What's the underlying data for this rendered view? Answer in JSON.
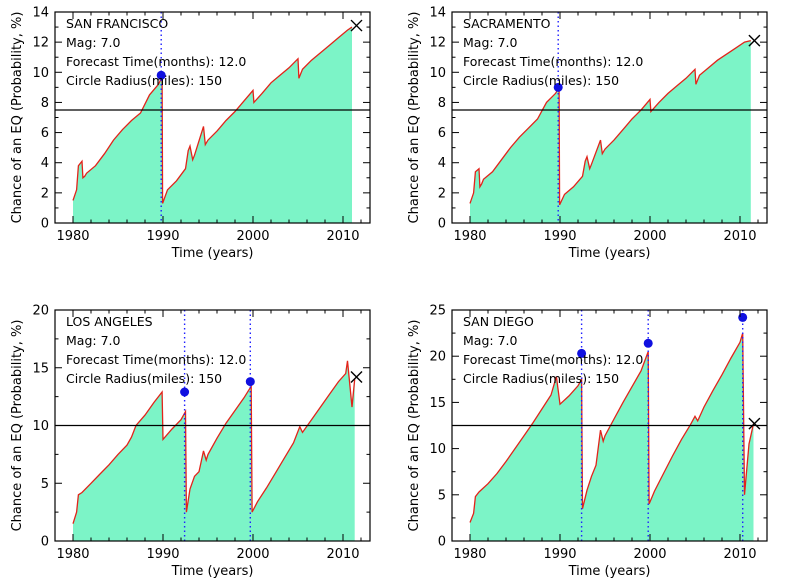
{
  "colors": {
    "fill": "#7cf4c7",
    "series": "#e2231a",
    "marker": "#1010e0",
    "event_line": "#2020ff",
    "threshold": "#000000",
    "axis": "#000000"
  },
  "chart_data": [
    {
      "type": "area",
      "location_label": "SAN FRANCISCO",
      "info": [
        "Mag: 7.0",
        "Forecast Time(months): 12.0",
        "Circle Radius(miles): 150"
      ],
      "xlabel": "Time (years)",
      "ylabel": "Chance of an EQ (Probability, %)",
      "xlim": [
        1978,
        2013
      ],
      "ylim": [
        0,
        14
      ],
      "xticks": [
        1980,
        1990,
        2000,
        2010
      ],
      "yticks": [
        0,
        2,
        4,
        6,
        8,
        10,
        12,
        14
      ],
      "threshold": 7.5,
      "series": [
        {
          "x": [
            1980.0,
            1980.4,
            1980.6,
            1981.0,
            1981.1,
            1981.3,
            1981.5,
            1982.5,
            1983.5,
            1984.5,
            1985.5,
            1986.5,
            1987.5,
            1988.5,
            1989.5,
            1989.9,
            1989.95,
            1990.5,
            1991.5,
            1992.5,
            1992.8,
            1993.0,
            1993.3,
            1993.5,
            1994.5,
            1994.7,
            1995.0,
            1996.0,
            1997.0,
            1998.0,
            1999.0,
            2000.0,
            2000.1,
            2001.0,
            2002.0,
            2003.0,
            2004.0,
            2005.0,
            2005.1,
            2005.3,
            2005.5,
            2006.5,
            2007.5,
            2008.5,
            2009.5,
            2010.5,
            2011.0
          ],
          "y": [
            1.5,
            2.2,
            3.8,
            4.1,
            3.0,
            3.1,
            3.3,
            3.8,
            4.6,
            5.5,
            6.2,
            6.8,
            7.3,
            8.5,
            9.2,
            9.7,
            1.3,
            2.2,
            2.8,
            3.6,
            4.8,
            5.1,
            4.2,
            4.5,
            6.4,
            5.2,
            5.5,
            6.1,
            6.8,
            7.4,
            8.1,
            8.8,
            8.0,
            8.6,
            9.3,
            9.8,
            10.3,
            10.9,
            9.6,
            9.9,
            10.2,
            10.8,
            11.3,
            11.8,
            12.3,
            12.8,
            13.0
          ]
        }
      ],
      "events": [
        {
          "x": 1989.8,
          "y": 9.8
        }
      ],
      "current": {
        "x": 2011.5,
        "y": 13.1
      }
    },
    {
      "type": "area",
      "location_label": "SACRAMENTO",
      "info": [
        "Mag: 7.0",
        "Forecast Time(months): 12.0",
        "Circle Radius(miles): 150"
      ],
      "xlabel": "Time (years)",
      "ylabel": "Chance of an EQ (Probability, %)",
      "xlim": [
        1978,
        2013
      ],
      "ylim": [
        0,
        14
      ],
      "xticks": [
        1980,
        1990,
        2000,
        2010
      ],
      "yticks": [
        0,
        2,
        4,
        6,
        8,
        10,
        12,
        14
      ],
      "threshold": 7.5,
      "series": [
        {
          "x": [
            1980.0,
            1980.4,
            1980.6,
            1981.0,
            1981.1,
            1981.3,
            1981.5,
            1982.5,
            1983.5,
            1984.5,
            1985.5,
            1986.5,
            1987.5,
            1988.5,
            1989.5,
            1989.9,
            1989.95,
            1990.5,
            1991.5,
            1992.5,
            1992.8,
            1993.0,
            1993.3,
            1993.5,
            1994.5,
            1994.7,
            1995.0,
            1996.0,
            1997.0,
            1998.0,
            1999.0,
            2000.0,
            2000.1,
            2001.0,
            2002.0,
            2003.0,
            2004.0,
            2005.0,
            2005.1,
            2005.3,
            2005.5,
            2006.5,
            2007.5,
            2008.5,
            2009.5,
            2010.5,
            2011.2
          ],
          "y": [
            1.3,
            2.0,
            3.4,
            3.6,
            2.4,
            2.6,
            2.9,
            3.4,
            4.2,
            5.0,
            5.7,
            6.3,
            6.9,
            8.0,
            8.6,
            9.0,
            1.2,
            1.9,
            2.4,
            3.1,
            4.1,
            4.4,
            3.6,
            3.9,
            5.5,
            4.6,
            4.9,
            5.5,
            6.2,
            6.9,
            7.5,
            8.2,
            7.4,
            8.0,
            8.6,
            9.1,
            9.6,
            10.2,
            9.2,
            9.5,
            9.8,
            10.3,
            10.8,
            11.2,
            11.6,
            12.0,
            12.1
          ]
        }
      ],
      "events": [
        {
          "x": 1989.8,
          "y": 9.0
        }
      ],
      "current": {
        "x": 2011.6,
        "y": 12.1
      }
    },
    {
      "type": "area",
      "location_label": "LOS ANGELES",
      "info": [
        "Mag: 7.0",
        "Forecast Time(months): 12.0",
        "Circle Radius(miles): 150"
      ],
      "xlabel": "Time (years)",
      "ylabel": "Chance of an EQ (Probability, %)",
      "xlim": [
        1978,
        2013
      ],
      "ylim": [
        0,
        20
      ],
      "xticks": [
        1980,
        1990,
        2000,
        2010
      ],
      "yticks": [
        0,
        5,
        10,
        15,
        20
      ],
      "threshold": 10,
      "series": [
        {
          "x": [
            1980.0,
            1980.4,
            1980.6,
            1981.0,
            1982.0,
            1983.0,
            1984.0,
            1985.0,
            1986.0,
            1986.5,
            1987.0,
            1988.0,
            1989.0,
            1989.9,
            1990.0,
            1991.0,
            1992.0,
            1992.5,
            1992.6,
            1993.0,
            1993.5,
            1994.0,
            1994.5,
            1994.8,
            1995.0,
            1996.0,
            1997.0,
            1998.0,
            1999.0,
            1999.8,
            1999.9,
            2000.5,
            2001.5,
            2002.5,
            2003.5,
            2004.5,
            2005.2,
            2005.5,
            2006.5,
            2007.5,
            2008.5,
            2009.5,
            2010.3,
            2010.5,
            2011.0,
            2011.3
          ],
          "y": [
            1.5,
            2.5,
            4.0,
            4.2,
            5.0,
            5.8,
            6.6,
            7.5,
            8.3,
            9.0,
            10.0,
            10.9,
            12.0,
            12.9,
            8.8,
            9.7,
            10.5,
            11.2,
            2.5,
            4.5,
            5.6,
            6.0,
            7.8,
            7.0,
            7.5,
            8.9,
            10.2,
            11.3,
            12.4,
            13.4,
            2.5,
            3.4,
            4.6,
            5.9,
            7.2,
            8.5,
            9.9,
            9.4,
            10.5,
            11.6,
            12.7,
            13.8,
            14.5,
            15.6,
            11.6,
            14.0
          ]
        }
      ],
      "events": [
        {
          "x": 1992.4,
          "y": 12.9
        },
        {
          "x": 1999.7,
          "y": 13.8
        }
      ],
      "current": {
        "x": 2011.5,
        "y": 14.2
      }
    },
    {
      "type": "area",
      "location_label": "SAN DIEGO",
      "info": [
        "Mag: 7.0",
        "Forecast Time(months): 12.0",
        "Circle Radius(miles): 150"
      ],
      "xlabel": "Time (years)",
      "ylabel": "Chance of an EQ (Probability, %)",
      "xlim": [
        1978,
        2013
      ],
      "ylim": [
        0,
        25
      ],
      "xticks": [
        1980,
        1990,
        2000,
        2010
      ],
      "yticks": [
        0,
        5,
        10,
        15,
        20,
        25
      ],
      "threshold": 12.5,
      "series": [
        {
          "x": [
            1980.0,
            1980.4,
            1980.6,
            1981.0,
            1982.0,
            1983.0,
            1984.0,
            1985.0,
            1986.0,
            1987.0,
            1988.0,
            1989.0,
            1989.6,
            1990.0,
            1991.0,
            1992.0,
            1992.4,
            1992.5,
            1993.0,
            1993.5,
            1994.0,
            1994.5,
            1994.8,
            1995.0,
            1996.0,
            1997.0,
            1998.0,
            1999.0,
            1999.8,
            1999.9,
            2000.5,
            2001.5,
            2002.5,
            2003.5,
            2004.5,
            2005.0,
            2005.3,
            2006.0,
            2007.0,
            2008.0,
            2009.0,
            2010.0,
            2010.3,
            2010.5,
            2011.0,
            2011.5
          ],
          "y": [
            2.0,
            3.0,
            4.8,
            5.3,
            6.2,
            7.3,
            8.6,
            10.0,
            11.4,
            12.8,
            14.3,
            15.8,
            17.8,
            14.8,
            15.7,
            16.8,
            17.5,
            3.5,
            5.5,
            7.0,
            8.2,
            12.0,
            10.8,
            11.4,
            13.2,
            15.0,
            16.7,
            18.4,
            20.5,
            4.0,
            5.4,
            7.3,
            9.2,
            11.0,
            12.6,
            13.5,
            13.0,
            14.5,
            16.3,
            18.0,
            19.8,
            21.5,
            22.5,
            5.0,
            10.5,
            12.7
          ]
        }
      ],
      "events": [
        {
          "x": 1992.4,
          "y": 20.3
        },
        {
          "x": 1999.8,
          "y": 21.4
        },
        {
          "x": 2010.3,
          "y": 24.2
        }
      ],
      "current": {
        "x": 2011.6,
        "y": 12.7
      }
    }
  ]
}
